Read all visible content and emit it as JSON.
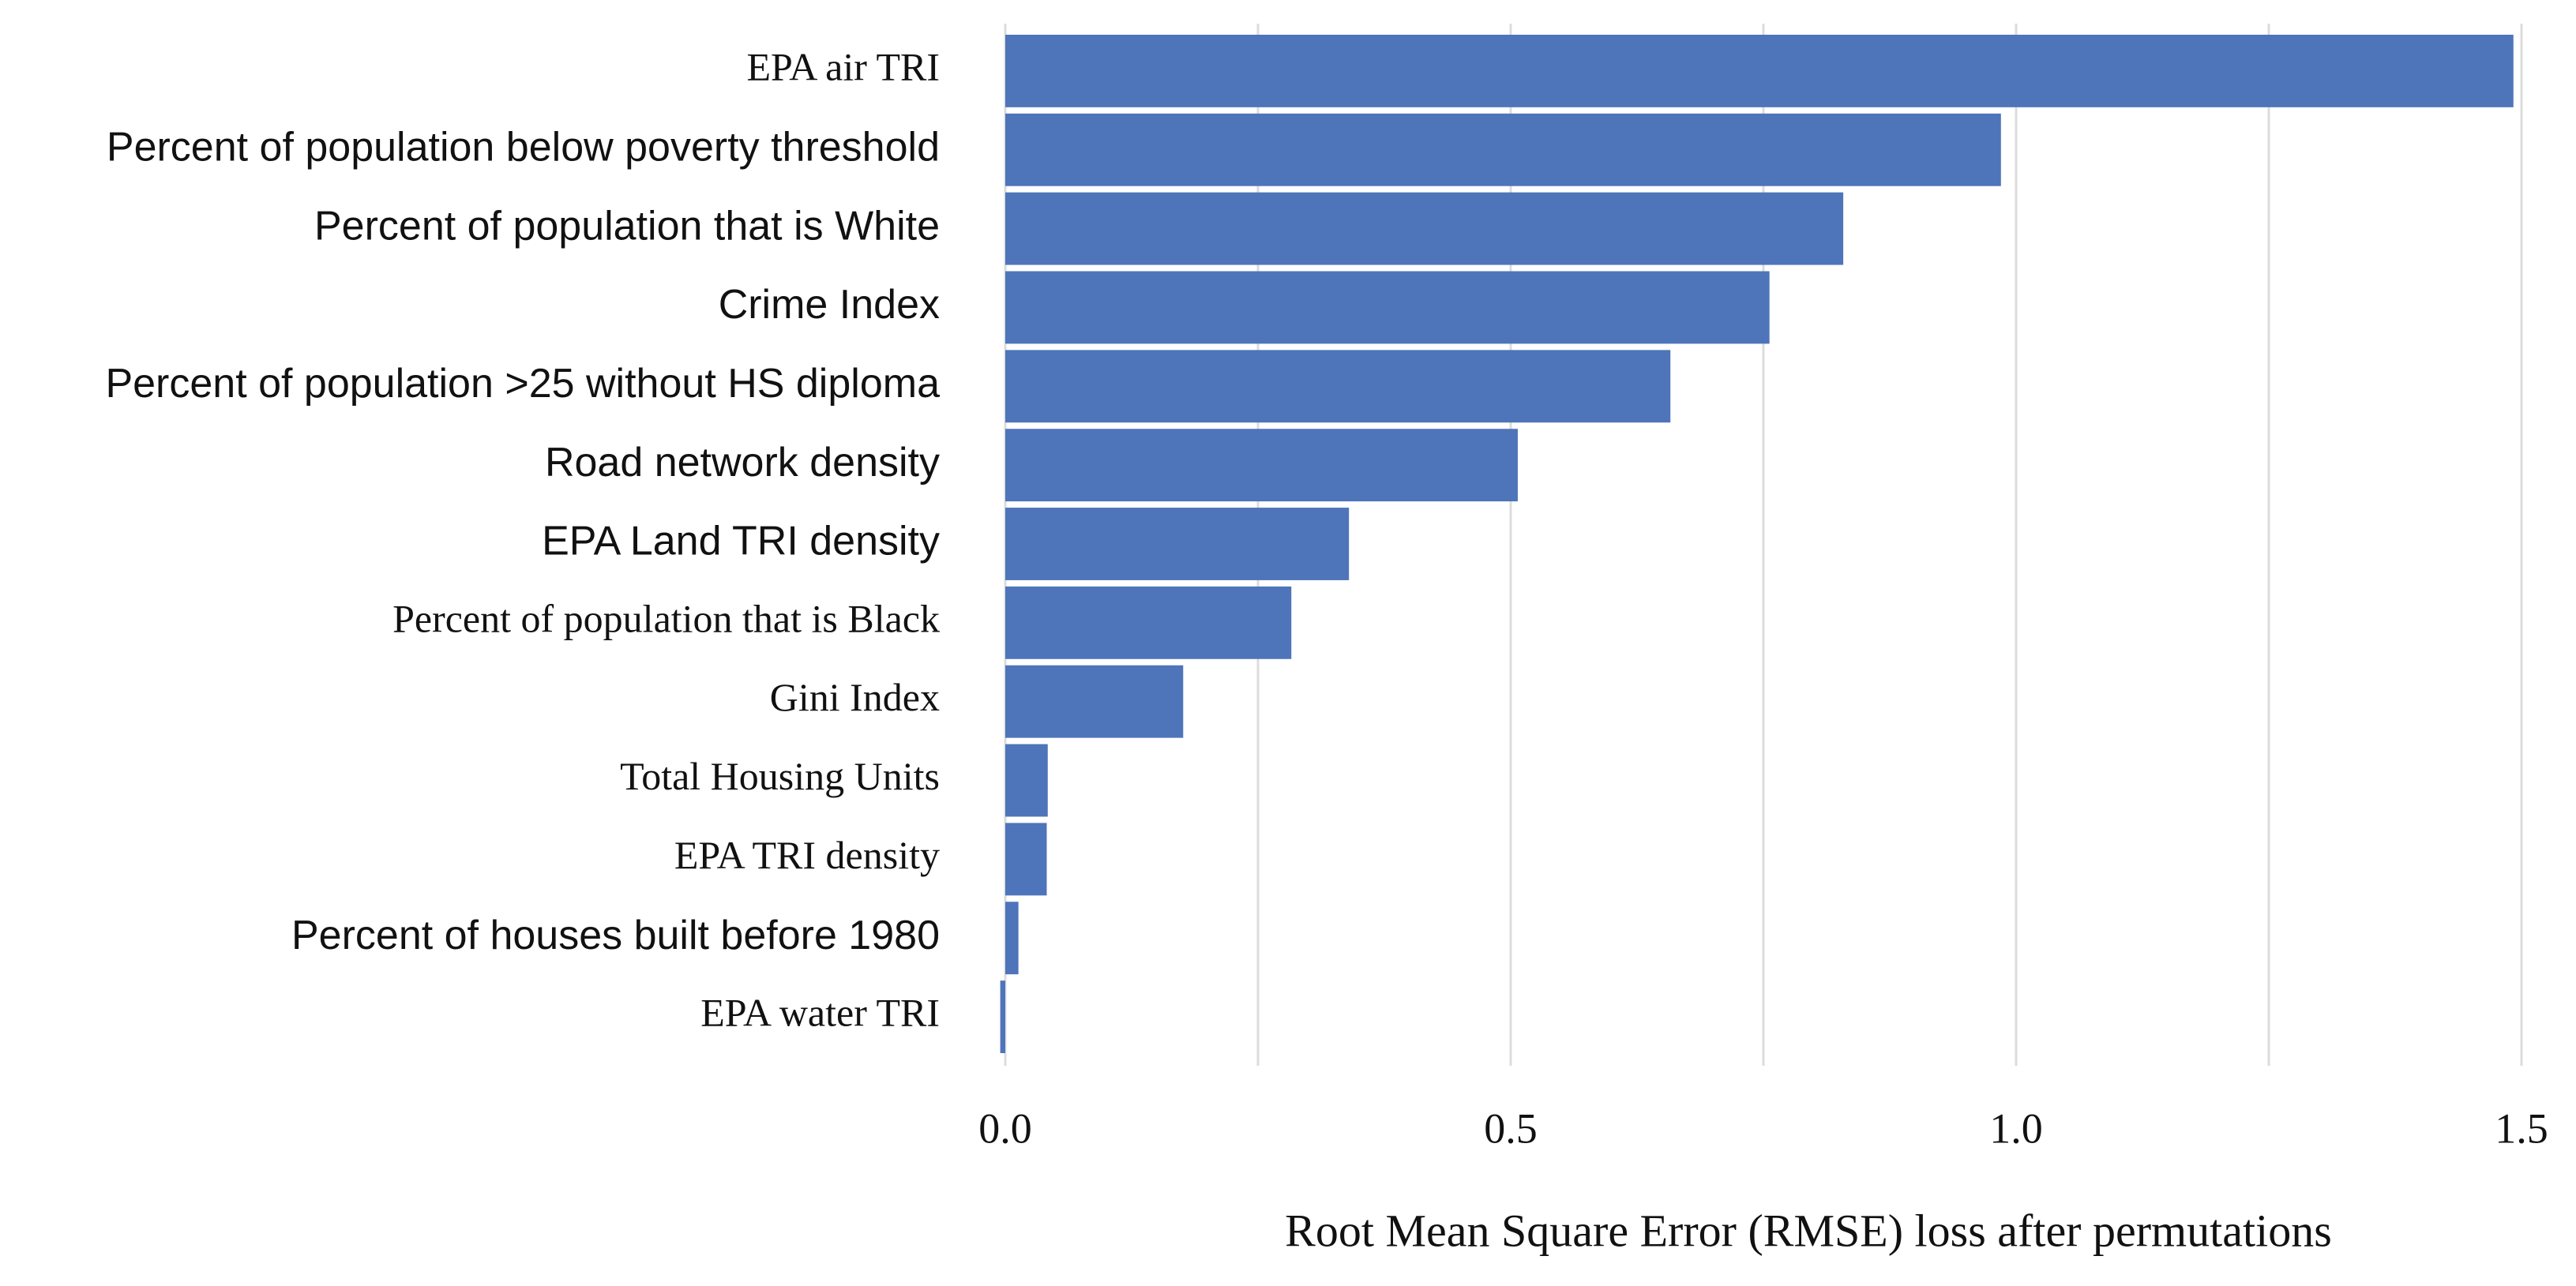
{
  "chart_data": {
    "type": "barh",
    "categories": [
      "EPA air TRI",
      "Percent of population below poverty threshold",
      "Percent of population that is White",
      "Crime Index",
      "Percent of population >25 without HS diploma",
      "Road network density",
      "EPA Land TRI density",
      "Percent of population that is Black",
      "Gini Index",
      "Total Housing Units",
      "EPA TRI density",
      "Percent of houses built before 1980",
      "EPA water TRI"
    ],
    "values": [
      1.492,
      0.985,
      0.829,
      0.756,
      0.658,
      0.507,
      0.34,
      0.283,
      0.176,
      0.042,
      0.041,
      0.013,
      -0.005
    ],
    "color": "#4e74ba",
    "xlabel": "Root Mean Square Error (RMSE) loss after permutations",
    "xlim": [
      0,
      1.5
    ],
    "xticks": [
      {
        "value": 0,
        "label": "0.0"
      },
      0.5,
      {
        "value": 1,
        "label": "1.0"
      },
      1.5
    ],
    "grid": [
      0,
      0.25,
      0.5,
      0.75,
      1,
      1.25,
      1.5
    ]
  }
}
